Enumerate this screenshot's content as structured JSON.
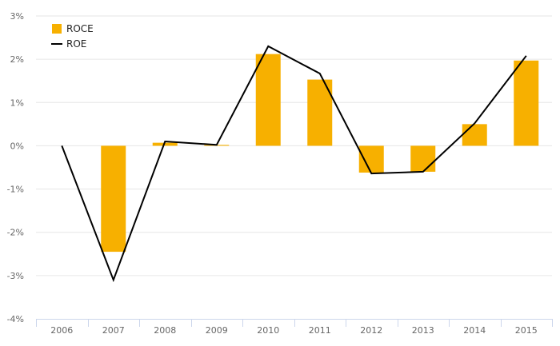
{
  "chart_data": {
    "type": "bar",
    "categories": [
      "2006",
      "2007",
      "2008",
      "2009",
      "2010",
      "2011",
      "2012",
      "2013",
      "2014",
      "2015"
    ],
    "series": [
      {
        "name": "ROCE",
        "type": "bar",
        "color": "#f7b000",
        "values": [
          0.0,
          -2.45,
          0.07,
          0.02,
          2.12,
          1.53,
          -0.62,
          -0.6,
          0.5,
          1.97
        ]
      },
      {
        "name": "ROE",
        "type": "line",
        "color": "#000000",
        "values": [
          0.0,
          -3.1,
          0.1,
          0.02,
          2.3,
          1.67,
          -0.64,
          -0.6,
          0.52,
          2.08
        ]
      }
    ],
    "ylim": [
      -4,
      3
    ],
    "yticks": [
      3,
      2,
      1,
      0,
      -1,
      -2,
      -3,
      -4
    ],
    "ytick_labels": [
      "3%",
      "2%",
      "1%",
      "0%",
      "-1%",
      "-2%",
      "-3%",
      "-4%"
    ],
    "grid": true,
    "legend_position": "top-left",
    "xlabel": "",
    "ylabel": "",
    "title": ""
  }
}
